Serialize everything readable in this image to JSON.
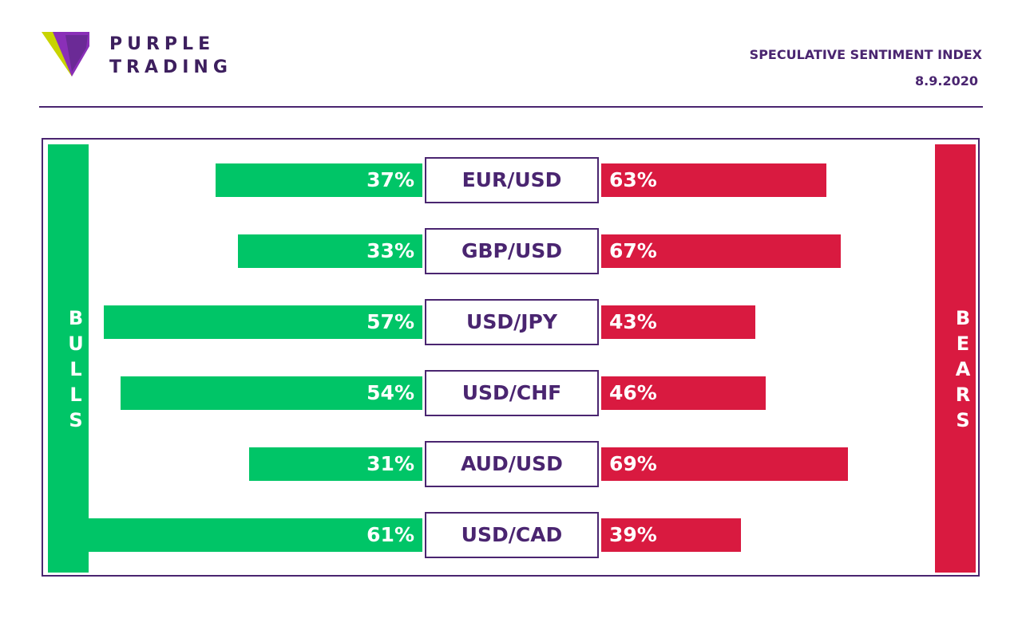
{
  "brand": {
    "line1": "PURPLE",
    "line2": "TRADING",
    "logo_colors": {
      "purple": "#8a2fb8",
      "dark_purple": "#4a1f73",
      "lime": "#c8d400"
    }
  },
  "header": {
    "title": "SPECULATIVE SENTIMENT INDEX",
    "date": "8.9.2020"
  },
  "sides": {
    "bulls_label": "BULLS",
    "bears_label": "BEARS"
  },
  "colors": {
    "bull": "#00c567",
    "bear": "#d91a40",
    "accent": "#4a2570"
  },
  "chart_data": {
    "type": "bar",
    "orientation": "horizontal-diverging",
    "categories": [
      "EUR/USD",
      "GBP/USD",
      "USD/JPY",
      "USD/CHF",
      "AUD/USD",
      "USD/CAD"
    ],
    "series": [
      {
        "name": "BULLS",
        "values": [
          37,
          33,
          57,
          54,
          31,
          61
        ],
        "labels": [
          "37%",
          "33%",
          "57%",
          "54%",
          "31%",
          "61%"
        ]
      },
      {
        "name": "BEARS",
        "values": [
          63,
          67,
          43,
          46,
          69,
          39
        ],
        "labels": [
          "63%",
          "67%",
          "43%",
          "46%",
          "69%",
          "39%"
        ]
      }
    ],
    "unit": "%"
  }
}
